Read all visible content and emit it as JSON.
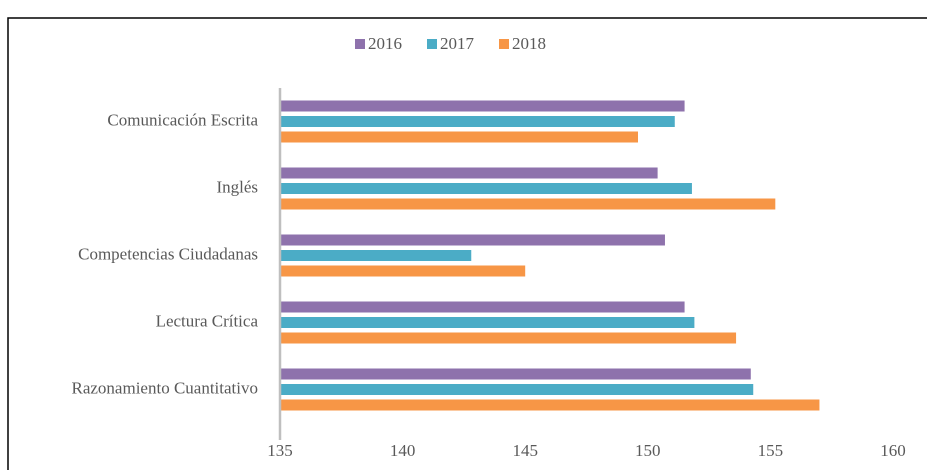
{
  "chart_data": {
    "type": "hbar",
    "categories": [
      "Comunicación Escrita",
      "Inglés",
      "Competencias Ciudadanas",
      "Lectura Crítica",
      "Razonamiento Cuantitativo"
    ],
    "series": [
      {
        "name": "2016",
        "color": "#8e72ac",
        "values": [
          151.5,
          150.4,
          150.7,
          151.5,
          154.2
        ]
      },
      {
        "name": "2017",
        "color": "#4bacc6",
        "values": [
          151.1,
          151.8,
          142.8,
          151.9,
          154.3
        ]
      },
      {
        "name": "2018",
        "color": "#f79646",
        "values": [
          149.6,
          155.2,
          145.0,
          153.6,
          157.0
        ]
      }
    ],
    "xlim": [
      135,
      160
    ],
    "xticks": [
      135,
      140,
      145,
      150,
      155,
      160
    ],
    "legend": "top"
  }
}
